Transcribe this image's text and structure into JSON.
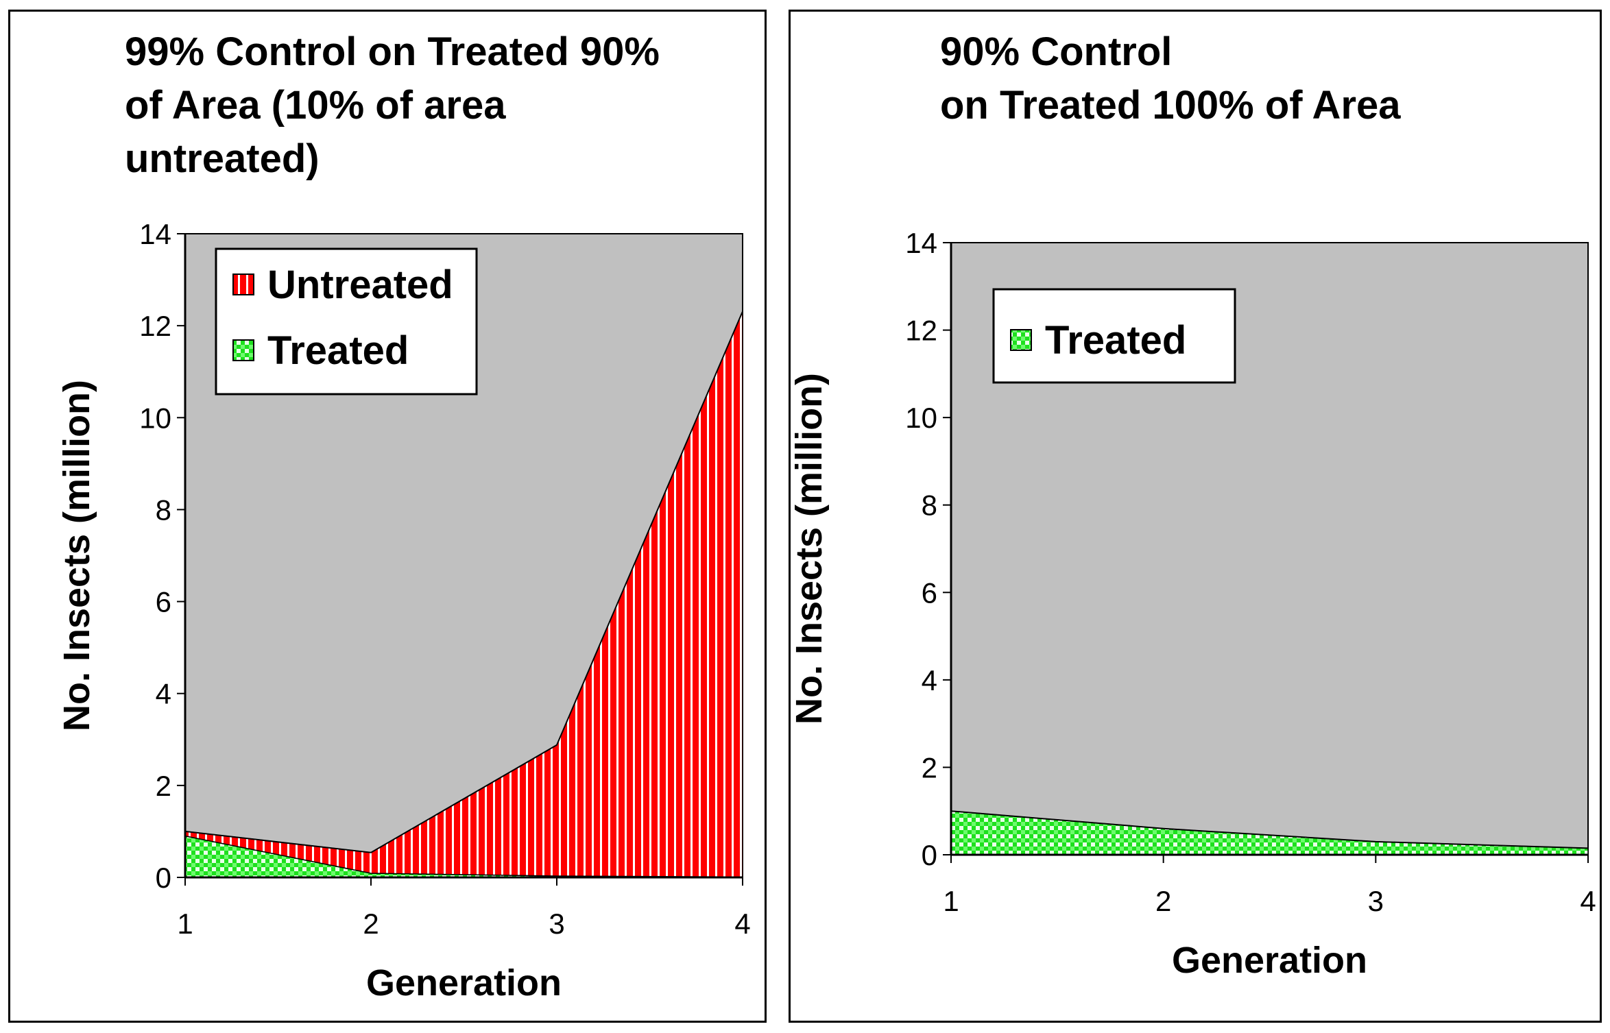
{
  "chart_data": [
    {
      "type": "area",
      "stacked": true,
      "title_lines": [
        "99% Control on Treated 90%",
        "of Area (10% of area",
        "untreated)"
      ],
      "xlabel": "Generation",
      "ylabel": "No. Insects (million)",
      "categories": [
        "1",
        "2",
        "3",
        "4"
      ],
      "yticks": [
        "0",
        "2",
        "4",
        "6",
        "8",
        "10",
        "12",
        "14"
      ],
      "ylim": [
        0,
        14
      ],
      "plot_background": "#c0c0c0",
      "legend_position": "top-left",
      "series": [
        {
          "name": "Treated",
          "values": [
            0.9,
            0.09,
            0.03,
            0.01
          ],
          "color": "#22ee22",
          "pattern": "checker"
        },
        {
          "name": "Untreated",
          "values": [
            0.1,
            0.45,
            2.85,
            12.3
          ],
          "color": "#ff0000",
          "pattern": "vertical-stripes"
        }
      ],
      "legend_order": [
        "Untreated",
        "Treated"
      ]
    },
    {
      "type": "area",
      "stacked": true,
      "title_lines": [
        "90% Control",
        "on Treated 100% of Area"
      ],
      "xlabel": "Generation",
      "ylabel": "No. Insects (million)",
      "categories": [
        "1",
        "2",
        "3",
        "4"
      ],
      "yticks": [
        "0",
        "2",
        "4",
        "6",
        "8",
        "10",
        "12",
        "14"
      ],
      "ylim": [
        0,
        14
      ],
      "plot_background": "#c0c0c0",
      "legend_position": "top-left",
      "series": [
        {
          "name": "Treated",
          "values": [
            1.0,
            0.6,
            0.3,
            0.15
          ],
          "color": "#22ee22",
          "pattern": "checker"
        }
      ],
      "legend_order": [
        "Treated"
      ]
    }
  ]
}
